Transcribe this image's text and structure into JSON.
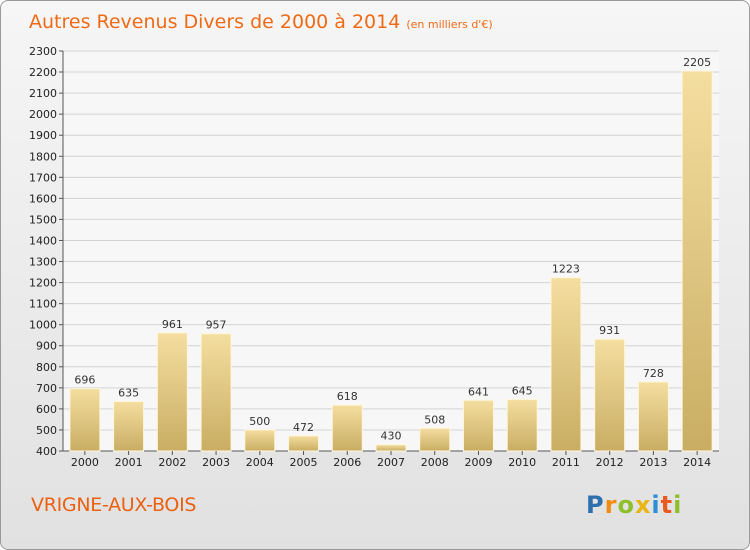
{
  "header": {
    "title": "Autres Revenus Divers de 2000 à 2014",
    "subtitle": "(en milliers d'€)"
  },
  "footer": {
    "place": "VRIGNE-AUX-BOIS",
    "logo": [
      "P",
      "r",
      "o",
      "x",
      "i",
      "t",
      "i"
    ]
  },
  "colors": {
    "title": "#f06a16",
    "bar_light": "#f4dea0",
    "bar_dark": "#c9ad63",
    "grid": "#d4d4d4"
  },
  "chart_data": {
    "type": "bar",
    "title": "Autres Revenus Divers de 2000 à 2014",
    "subtitle": "(en milliers d'€)",
    "xlabel": "",
    "ylabel": "",
    "categories": [
      "2000",
      "2001",
      "2002",
      "2003",
      "2004",
      "2005",
      "2006",
      "2007",
      "2008",
      "2009",
      "2010",
      "2011",
      "2012",
      "2013",
      "2014"
    ],
    "values": [
      696,
      635,
      961,
      957,
      500,
      472,
      618,
      430,
      508,
      641,
      645,
      1223,
      931,
      728,
      2205
    ],
    "ylim": [
      400,
      2300
    ],
    "yticks": [
      400,
      500,
      600,
      700,
      800,
      900,
      1000,
      1100,
      1200,
      1300,
      1400,
      1500,
      1600,
      1700,
      1800,
      1900,
      2000,
      2100,
      2200,
      2300
    ],
    "grid": true,
    "legend": "none"
  }
}
